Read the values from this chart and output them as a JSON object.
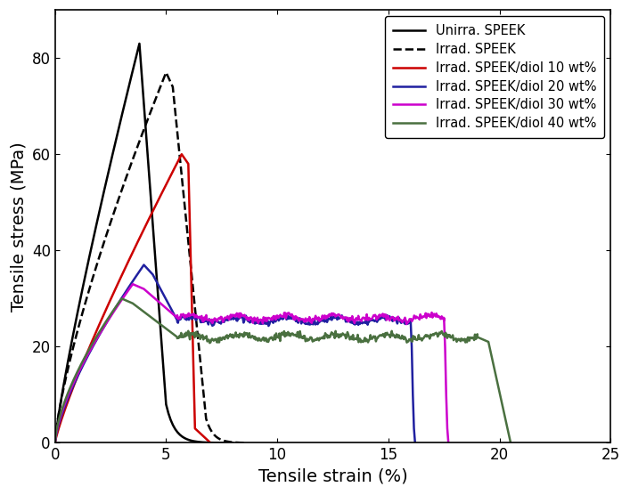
{
  "title": "",
  "xlabel": "Tensile strain (%)",
  "ylabel": "Tensile stress (MPa)",
  "xlim": [
    0,
    25
  ],
  "ylim": [
    0,
    90
  ],
  "xticks": [
    0,
    5,
    10,
    15,
    20,
    25
  ],
  "yticks": [
    0,
    20,
    40,
    60,
    80
  ],
  "legend_labels": [
    "Unirra. SPEEK",
    "Irrad. SPEEK",
    "Irrad. SPEEK/diol 10 wt%",
    "Irrad. SPEEK/diol 20 wt%",
    "Irrad. SPEEK/diol 30 wt%",
    "Irrad. SPEEK/diol 40 wt%"
  ],
  "colors": [
    "#000000",
    "#000000",
    "#cc0000",
    "#2020a0",
    "#cc00cc",
    "#4a7040"
  ],
  "linestyles": [
    "solid",
    "dashed",
    "solid",
    "solid",
    "solid",
    "solid"
  ],
  "linewidths": [
    1.8,
    1.8,
    1.8,
    1.8,
    1.8,
    1.8
  ],
  "background_color": "white"
}
